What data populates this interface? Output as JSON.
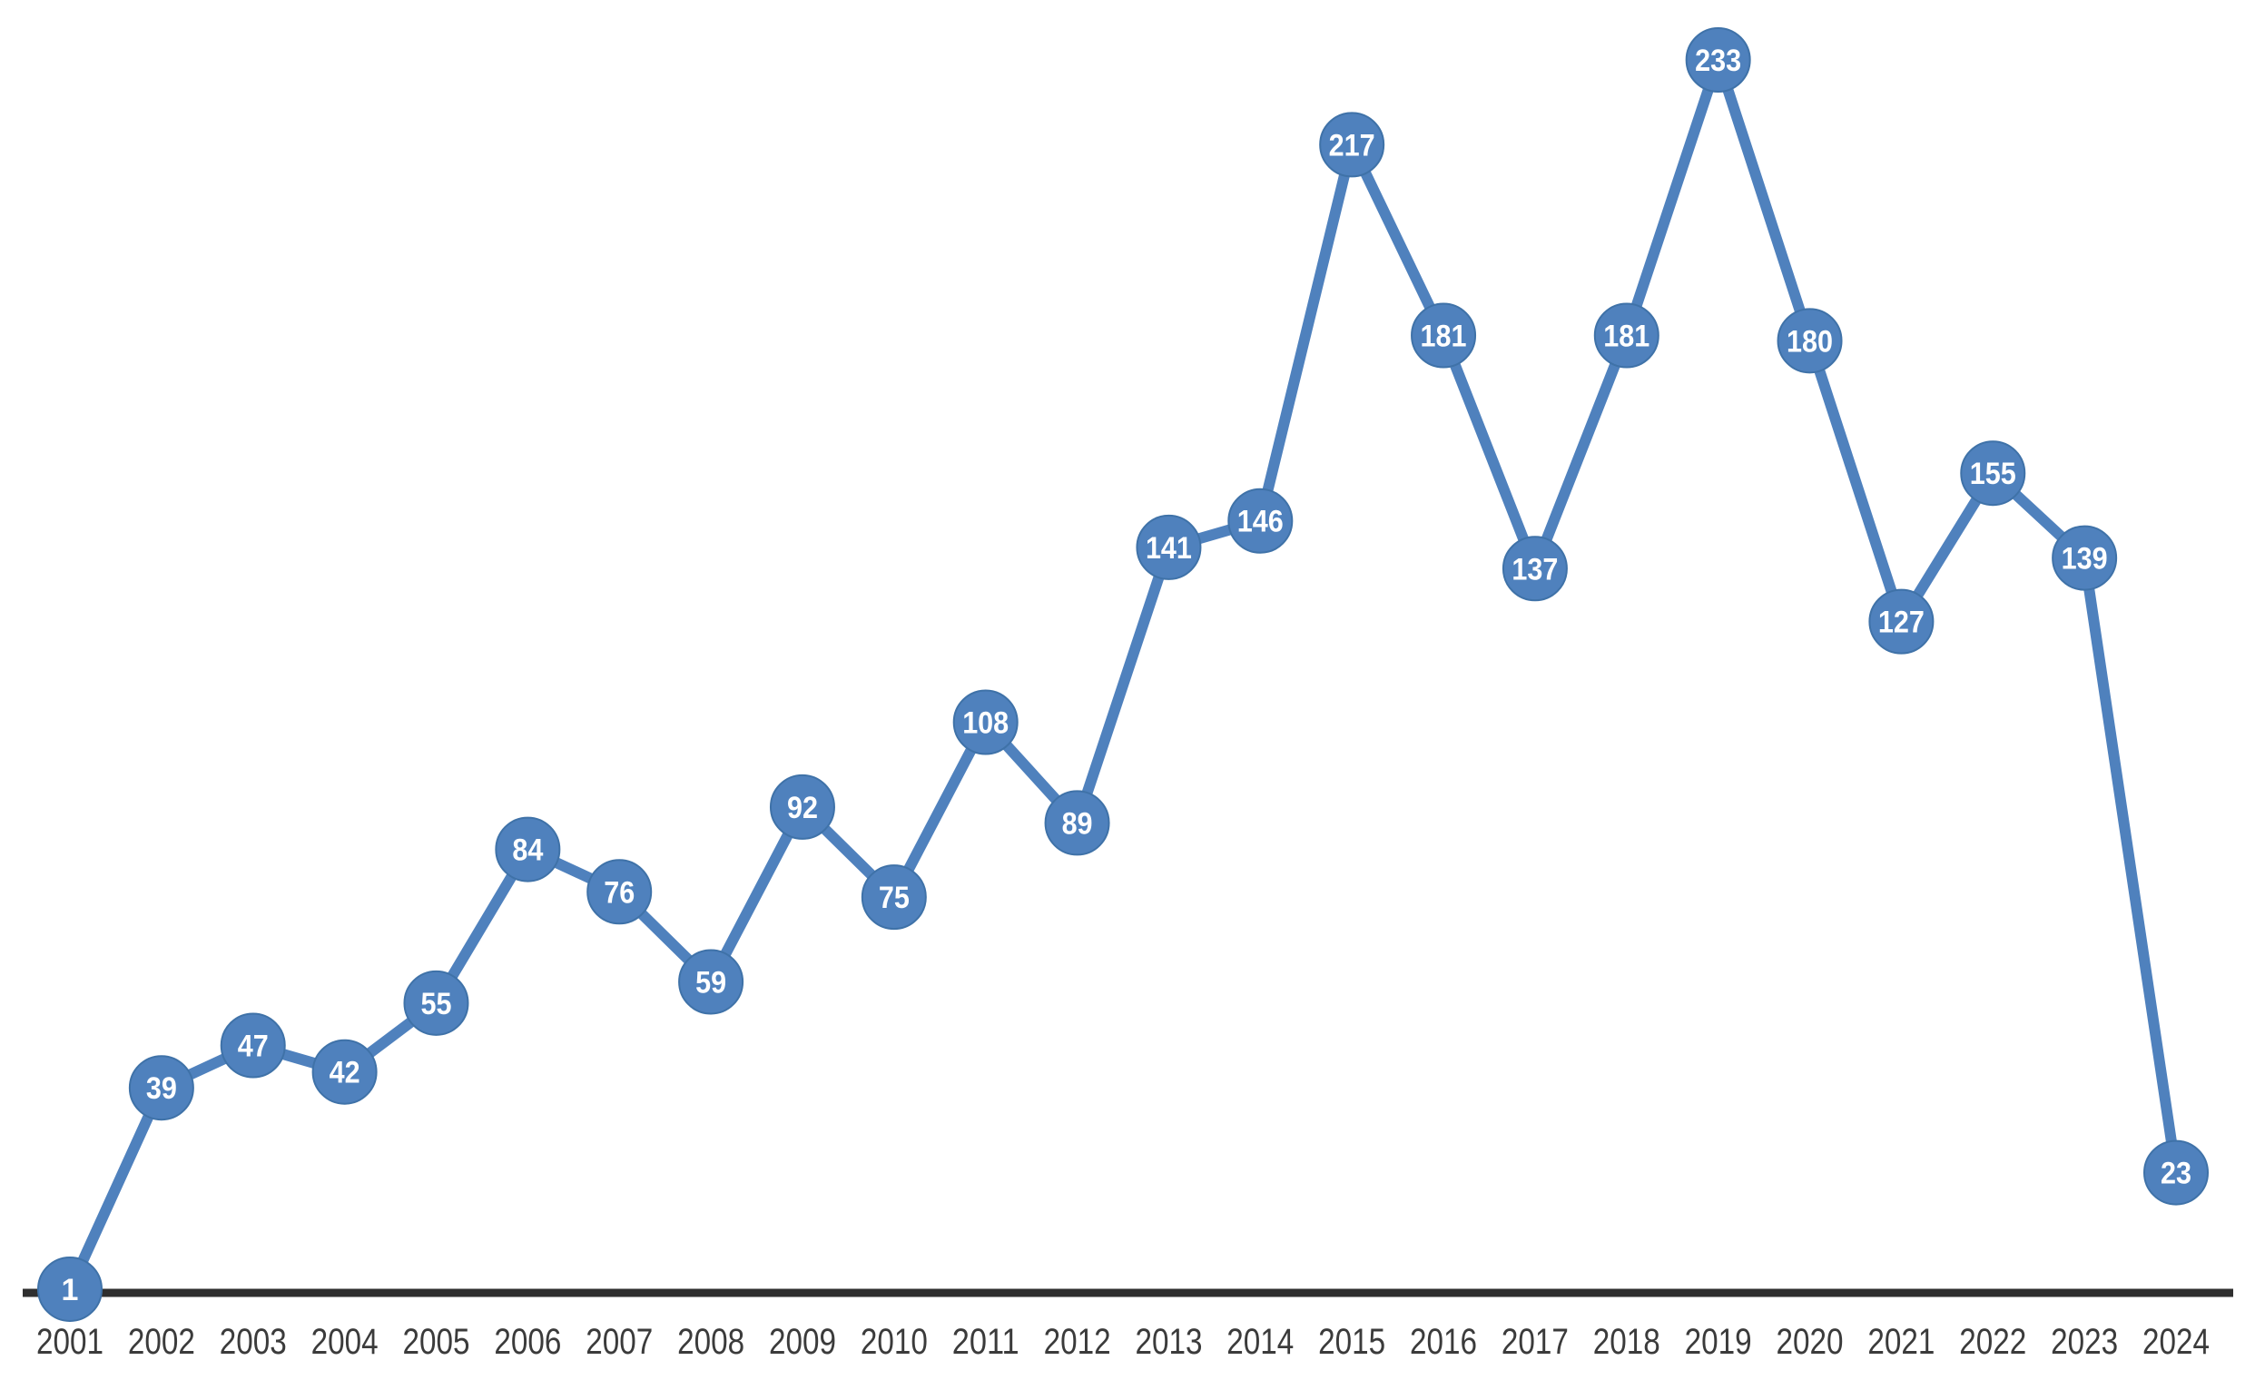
{
  "chart_data": {
    "type": "line",
    "categories": [
      "2001",
      "2002",
      "2003",
      "2004",
      "2005",
      "2006",
      "2007",
      "2008",
      "2009",
      "2010",
      "2011",
      "2012",
      "2013",
      "2014",
      "2015",
      "2016",
      "2017",
      "2018",
      "2019",
      "2020",
      "2021",
      "2022",
      "2023",
      "2024"
    ],
    "values": [
      1,
      39,
      47,
      42,
      55,
      84,
      76,
      59,
      92,
      75,
      108,
      89,
      141,
      146,
      217,
      181,
      137,
      181,
      233,
      180,
      127,
      155,
      139,
      23
    ],
    "title": "",
    "xlabel": "",
    "ylabel": "",
    "ylim": [
      0,
      245
    ],
    "grid": false,
    "legend": "none",
    "data_labels_visible": true,
    "colors": {
      "series": "#4f81bd",
      "marker_fill": "#4f81bd",
      "marker_edge": "#3f72a8",
      "data_label_text": "#ffffff",
      "axis_line": "#2f2f2f",
      "tick_label": "#3b3b3b",
      "background": "#ffffff"
    }
  }
}
